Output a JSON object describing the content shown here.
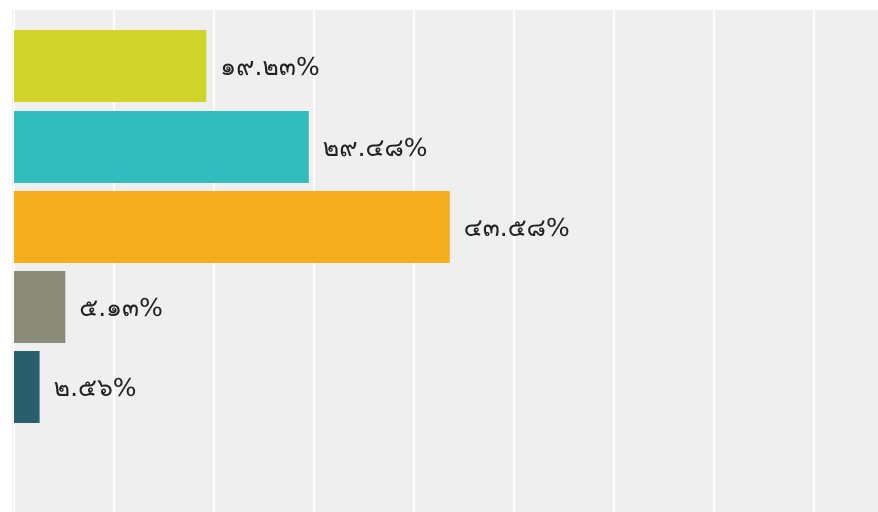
{
  "chart_data": {
    "type": "bar",
    "orientation": "horizontal",
    "grid": true,
    "xlim": [
      0,
      100
    ],
    "series": [
      {
        "values": [
          19.23,
          29.48,
          43.58,
          5.13,
          2.56
        ],
        "labels": [
          "๑๙.๒๓%",
          "๒๙.๔๘%",
          "๔๓.๕๘%",
          "๕.๑๓%",
          "๒.๕๖%"
        ],
        "colors": [
          "#d1d42a",
          "#33bcbc",
          "#f7ae1e",
          "#8b8b7a",
          "#2a5e6c"
        ]
      }
    ]
  },
  "colors": {
    "panel_background": "#efefef",
    "gridline": "#ffffff",
    "label_text": "#222222"
  }
}
